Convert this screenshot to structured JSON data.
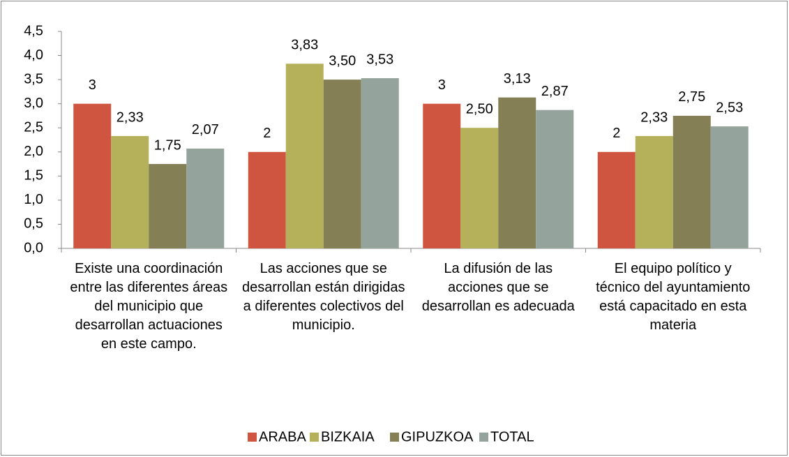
{
  "chart_data": {
    "type": "bar",
    "categories": [
      "Existe una coordinación entre las diferentes áreas del municipio que desarrollan actuaciones en este campo.",
      "Las acciones que se desarrollan están dirigidas a diferentes colectivos del municipio.",
      "La difusión de las acciones que se desarrollan es adecuada",
      "El equipo político y técnico del ayuntamiento está capacitado en esta materia"
    ],
    "series": [
      {
        "name": "ARABA",
        "color": "#d05540",
        "values": [
          3,
          2,
          3,
          2
        ],
        "value_labels": [
          "3",
          "2",
          "3",
          "2"
        ]
      },
      {
        "name": "BIZKAIA",
        "color": "#b5b05a",
        "values": [
          2.33,
          3.83,
          2.5,
          2.33
        ],
        "value_labels": [
          "2,33",
          "3,83",
          "2,50",
          "2,33"
        ]
      },
      {
        "name": "GIPUZKOA",
        "color": "#857f55",
        "values": [
          1.75,
          3.5,
          3.13,
          2.75
        ],
        "value_labels": [
          "1,75",
          "3,50",
          "3,13",
          "2,75"
        ]
      },
      {
        "name": "TOTAL",
        "color": "#94a39b",
        "values": [
          2.07,
          3.53,
          2.87,
          2.53
        ],
        "value_labels": [
          "2,07",
          "3,53",
          "2,87",
          "2,53"
        ]
      }
    ],
    "ylim": [
      0,
      4.5
    ],
    "yticks": [
      {
        "value": 0,
        "label": "0,0"
      },
      {
        "value": 0.5,
        "label": "0,5"
      },
      {
        "value": 1,
        "label": "1,0"
      },
      {
        "value": 1.5,
        "label": "1,5"
      },
      {
        "value": 2,
        "label": "2,0"
      },
      {
        "value": 2.5,
        "label": "2,5"
      },
      {
        "value": 3,
        "label": "3,0"
      },
      {
        "value": 3.5,
        "label": "3,5"
      },
      {
        "value": 4,
        "label": "4,0"
      },
      {
        "value": 4.5,
        "label": "4,5"
      }
    ],
    "legend": "bottom"
  }
}
